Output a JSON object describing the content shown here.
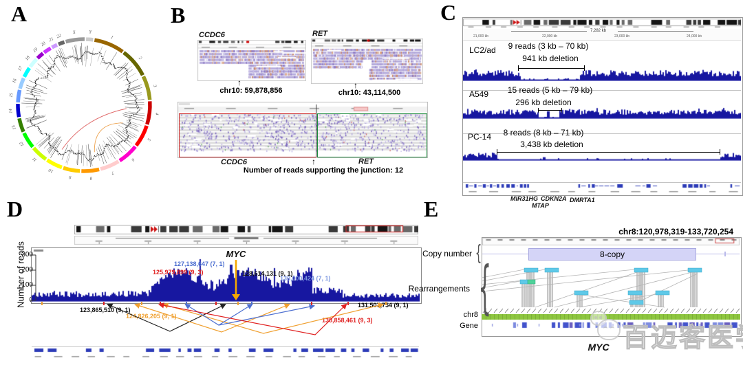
{
  "figure": {
    "colors": {
      "igv_coverage_blue": "#1717a0",
      "gene_blue": "#2d3cb8",
      "myc_arrow_orange": "#f5a800",
      "breakpoint_orange": "#f0a030",
      "breakpoint_red": "#e02020",
      "breakpoint_blue": "#4d6fd0",
      "breakpoint_light_blue": "#7b96e0",
      "junction_box_red": "#cc2222",
      "junction_box_green": "#1c8c3c",
      "rearrangement_cyan": "#5fc9e8",
      "rearrangement_teal": "#4fd29a",
      "chr8_bar_green": "#8dc63f",
      "copy_number_purple": "#d4d4f7"
    },
    "panel_a": {
      "label": "A",
      "chromosomes": [
        "1",
        "2",
        "3",
        "4",
        "5",
        "6",
        "7",
        "8",
        "9",
        "10",
        "11",
        "12",
        "13",
        "14",
        "15",
        "16",
        "17",
        "18",
        "19",
        "20",
        "21",
        "22",
        "X",
        "Y"
      ],
      "chromosome_colors": [
        "#996600",
        "#666600",
        "#99991e",
        "#cc0000",
        "#ff0000",
        "#ff00cc",
        "#ffcccc",
        "#ff9900",
        "#ffcc00",
        "#ffff00",
        "#ccff00",
        "#00ff00",
        "#358000",
        "#0000cc",
        "#6699ff",
        "#99ccff",
        "#00ffff",
        "#ccffff",
        "#9900cc",
        "#cc33ff",
        "#cc99ff",
        "#666666",
        "#999999",
        "#cccccc"
      ],
      "link_colors": [
        "#e06a6a",
        "#eda24e"
      ]
    },
    "panel_b": {
      "label": "B",
      "screenshots": [
        {
          "gene": "CCDC6",
          "breakpoint": "chr10: 59,878,856"
        },
        {
          "gene": "RET",
          "breakpoint": "chr10: 43,114,500"
        }
      ],
      "junction_view": {
        "left_gene": "CCDC6",
        "right_gene": "RET",
        "caption": "Number of reads supporting the junction: 12"
      }
    },
    "panel_c": {
      "label": "C",
      "ruler": {
        "span": "7,282 kb",
        "ticks": [
          "21,000 kb",
          "22,000 kb",
          "23,000 kb",
          "24,000 kb"
        ]
      },
      "tracks": [
        {
          "name": "LC2/ad",
          "reads": "9 reads (3 kb – 70 kb)",
          "deletion": "941 kb deletion"
        },
        {
          "name": "A549",
          "reads": "15 reads (5 kb – 79 kb)",
          "deletion": "296 kb deletion"
        },
        {
          "name": "PC-14",
          "reads": "8 reads (8 kb – 71 kb)",
          "deletion": "3,438 kb deletion"
        }
      ],
      "genes_row1": [
        "MIR31HG",
        "CDKN2A",
        "DMRTA1"
      ],
      "genes_row2": [
        "MTAP"
      ]
    },
    "panel_d": {
      "label": "D",
      "y_axis": {
        "title": "Number of reads",
        "ticks": [
          "300",
          "200",
          "100",
          "0"
        ]
      },
      "gene": "MYC",
      "breakpoints_upper": [
        {
          "text": "127,138,647 (7, 1)",
          "color": "#4d6fd0"
        },
        {
          "text": "125,979,899 (9, 3)",
          "color": "#e02020"
        },
        {
          "text": "128,614,131 (9, 1)",
          "color": "#111111"
        },
        {
          "text": "130,000,424 (7, 1)",
          "color": "#7b96e0"
        }
      ],
      "breakpoints_lower": [
        {
          "text": "123,865,510 (9, 1)",
          "color": "#111111"
        },
        {
          "text": "124,826,205 (9, 1)",
          "color": "#f0a030"
        },
        {
          "text": "131,507,754 (9, 1)",
          "color": "#f0a030"
        },
        {
          "text": "130,858,461 (9, 3)",
          "color": "#e02020"
        }
      ]
    },
    "panel_e": {
      "label": "E",
      "region": "chr8:120,978,319-133,720,254",
      "copy_number_label": "Copy number",
      "rearrangements_label": "Rearrangements",
      "chr_label": "chr8",
      "gene_row_label": "Gene",
      "copy_text": "8-copy",
      "gene": "MYC"
    },
    "watermark": {
      "text": "百迈客医学"
    }
  }
}
